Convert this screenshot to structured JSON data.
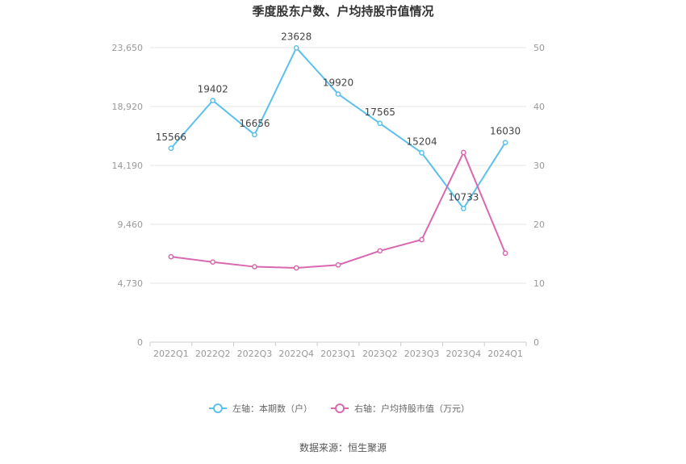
{
  "chart_data": {
    "type": "line",
    "title": "季度股东户数、户均持股市值情况",
    "categories": [
      "2022Q1",
      "2022Q2",
      "2022Q3",
      "2022Q4",
      "2023Q1",
      "2023Q2",
      "2023Q3",
      "2023Q4",
      "2024Q1"
    ],
    "y_left": {
      "min": 0,
      "max": 23650,
      "ticks": [
        0,
        4730,
        9460,
        14190,
        18920,
        23650
      ],
      "tick_labels": [
        "0",
        "4,730",
        "9,460",
        "14,190",
        "18,920",
        "23,650"
      ]
    },
    "y_right": {
      "min": 0,
      "max": 50,
      "ticks": [
        0,
        10,
        20,
        30,
        40,
        50
      ],
      "tick_labels": [
        "0",
        "10",
        "20",
        "30",
        "40",
        "50"
      ]
    },
    "series": [
      {
        "name": "左轴：本期数（户）",
        "axis": "left",
        "color": "#5bc0eb",
        "values": [
          15566,
          19402,
          16656,
          23628,
          19920,
          17565,
          15204,
          10733,
          16030
        ],
        "labels": [
          "15566",
          "19402",
          "16656",
          "23628",
          "19920",
          "17565",
          "15204",
          "10733",
          "16030"
        ]
      },
      {
        "name": "右轴：户均持股市值（万元）",
        "axis": "right",
        "color": "#d869b0",
        "values": [
          14.5,
          13.6,
          12.8,
          12.6,
          13.1,
          15.5,
          17.4,
          32.2,
          15.1
        ]
      }
    ],
    "grid": true,
    "legend_position": "bottom"
  },
  "source": "数据来源：恒生聚源"
}
